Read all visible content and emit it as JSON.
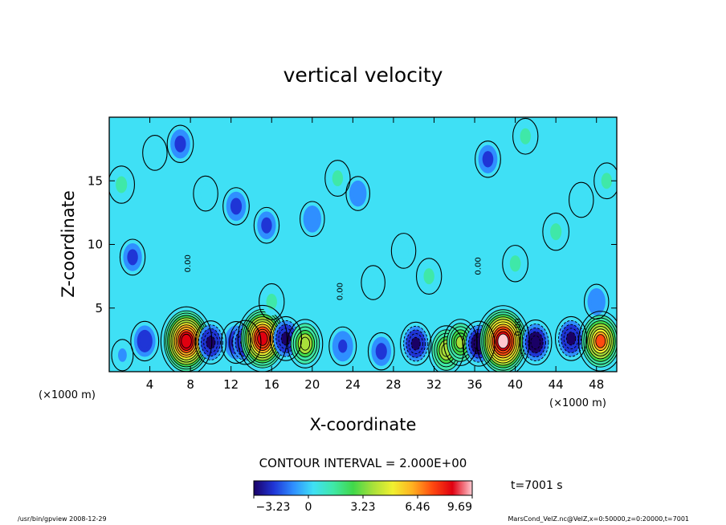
{
  "chart_data": {
    "type": "heatmap",
    "title": "vertical velocity",
    "xlabel": "X-coordinate",
    "ylabel": "Z-coordinate",
    "x_unit_left": "(×1000 m)",
    "x_unit_right": "(×1000 m)",
    "xlim": [
      0,
      50
    ],
    "ylim": [
      0,
      20
    ],
    "xticks": [
      "4",
      "8",
      "12",
      "16",
      "20",
      "24",
      "28",
      "32",
      "36",
      "40",
      "44",
      "48"
    ],
    "xtick_values": [
      4,
      8,
      12,
      16,
      20,
      24,
      28,
      32,
      36,
      40,
      44,
      48
    ],
    "yticks": [
      "5",
      "10",
      "15"
    ],
    "ytick_values": [
      5,
      10,
      15
    ],
    "contour_interval_label": "CONTOUR INTERVAL = 2.000E+00",
    "contour_labels": [
      {
        "text": "0.00",
        "x": 23.0,
        "z": 6.3
      },
      {
        "text": "0.00",
        "x": 36.6,
        "z": 8.3
      },
      {
        "text": "0.00",
        "x": 40.5,
        "z": 3.5
      },
      {
        "text": "0.00",
        "x": 8.0,
        "z": 8.5
      }
    ],
    "colorbar": {
      "min": -3.23,
      "max": 9.69,
      "tick_labels": [
        "−3.23",
        "0",
        "3.23",
        "6.46",
        "9.69"
      ],
      "tick_values": [
        -3.23,
        0,
        3.23,
        6.46,
        9.69
      ],
      "colors": [
        "#1a0066",
        "#1f35d6",
        "#2f8fff",
        "#3fe0f5",
        "#3fe8a8",
        "#40d84a",
        "#a8e03a",
        "#f0f030",
        "#ffb020",
        "#ff4a10",
        "#e00010",
        "#ffc8d0"
      ]
    },
    "time_label": "t=7001 s",
    "features": [
      {
        "x": 1.3,
        "z": 1.3,
        "w": -0.2
      },
      {
        "x": 3.5,
        "z": 2.4,
        "w": -2.0
      },
      {
        "x": 7.6,
        "z": 2.4,
        "w": 8.5
      },
      {
        "x": 10.0,
        "z": 2.3,
        "w": -2.8
      },
      {
        "x": 12.5,
        "z": 2.3,
        "w": -2.5
      },
      {
        "x": 13.4,
        "z": 2.3,
        "w": -3.0
      },
      {
        "x": 15.1,
        "z": 2.6,
        "w": 8.0
      },
      {
        "x": 17.4,
        "z": 2.6,
        "w": -3.0
      },
      {
        "x": 19.3,
        "z": 2.2,
        "w": 4.0
      },
      {
        "x": 23.0,
        "z": 2.0,
        "w": -1.8
      },
      {
        "x": 26.8,
        "z": 1.6,
        "w": -1.5
      },
      {
        "x": 30.2,
        "z": 2.2,
        "w": -2.8
      },
      {
        "x": 33.2,
        "z": 1.7,
        "w": 4.0
      },
      {
        "x": 34.6,
        "z": 2.3,
        "w": 3.5
      },
      {
        "x": 36.4,
        "z": 2.2,
        "w": -3.2
      },
      {
        "x": 38.8,
        "z": 2.4,
        "w": 9.0
      },
      {
        "x": 42.0,
        "z": 2.3,
        "w": -3.2
      },
      {
        "x": 45.5,
        "z": 2.6,
        "w": -3.0
      },
      {
        "x": 48.4,
        "z": 2.4,
        "w": 6.5
      },
      {
        "x": 2.3,
        "z": 9.0,
        "w": -1.2
      },
      {
        "x": 7.0,
        "z": 17.9,
        "w": -1.5
      },
      {
        "x": 4.5,
        "z": 17.2,
        "w": 1.0
      },
      {
        "x": 1.2,
        "z": 14.7,
        "w": 1.5
      },
      {
        "x": 9.5,
        "z": 14.0,
        "w": 1.0
      },
      {
        "x": 12.5,
        "z": 13.0,
        "w": -1.5
      },
      {
        "x": 15.5,
        "z": 11.5,
        "w": -1.2
      },
      {
        "x": 20.0,
        "z": 12.0,
        "w": -1.0
      },
      {
        "x": 22.5,
        "z": 15.2,
        "w": 1.2
      },
      {
        "x": 24.5,
        "z": 14.0,
        "w": -0.8
      },
      {
        "x": 29.0,
        "z": 9.5,
        "w": 1.0
      },
      {
        "x": 31.5,
        "z": 7.5,
        "w": 1.2
      },
      {
        "x": 37.3,
        "z": 16.7,
        "w": -1.3
      },
      {
        "x": 41.0,
        "z": 18.5,
        "w": 1.2
      },
      {
        "x": 44.0,
        "z": 11.0,
        "w": 1.5
      },
      {
        "x": 46.5,
        "z": 13.5,
        "w": 1.0
      },
      {
        "x": 49.0,
        "z": 15.0,
        "w": 1.2
      },
      {
        "x": 40.0,
        "z": 8.5,
        "w": 1.3
      },
      {
        "x": 48.0,
        "z": 5.5,
        "w": -1.0
      },
      {
        "x": 16.0,
        "z": 5.5,
        "w": 1.2
      },
      {
        "x": 26.0,
        "z": 7.0,
        "w": 0.8
      }
    ]
  },
  "footer": {
    "left": "/usr/bin/gpview   2008-12-29",
    "right": "MarsCond_VelZ.nc@VelZ,x=0:50000,z=0:20000,t=7001"
  }
}
